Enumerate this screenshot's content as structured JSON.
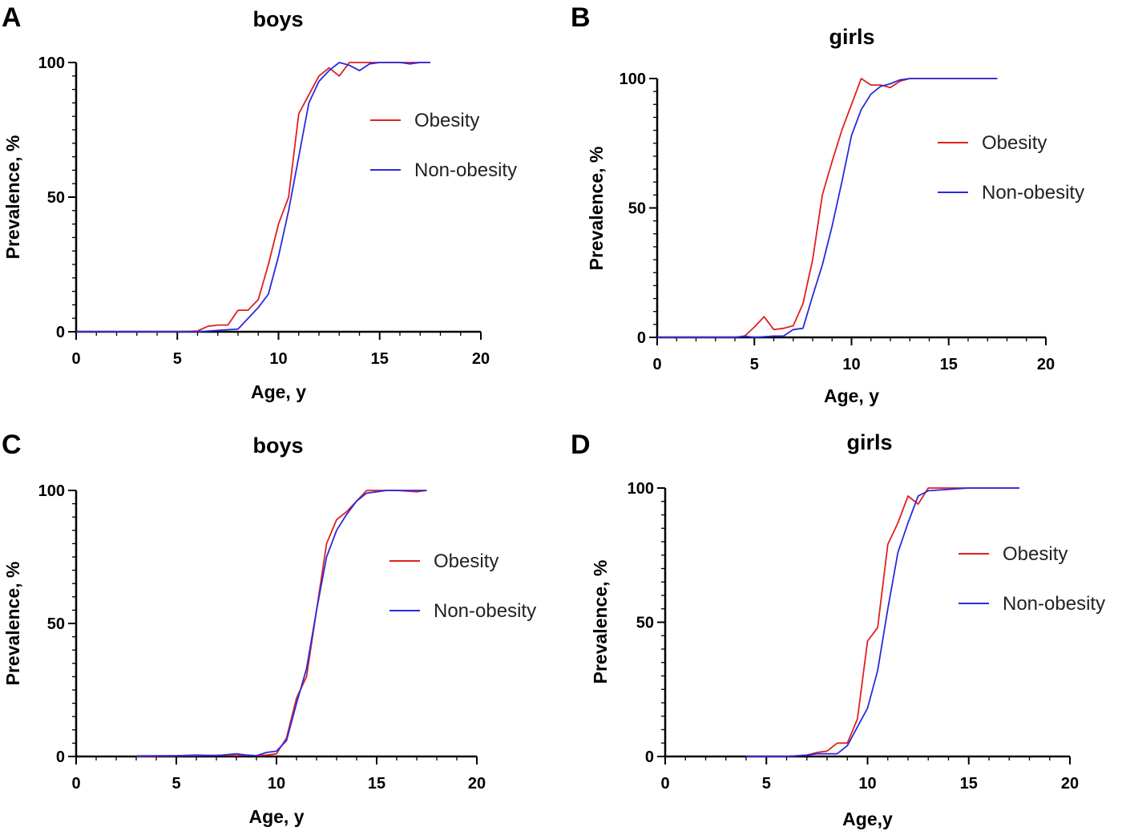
{
  "colors": {
    "obesity": "#e02020",
    "non_obesity": "#2a2ae0"
  },
  "chart_data": [
    {
      "type": "line",
      "panel": "A",
      "title": "boys",
      "xlabel": "Age, y",
      "ylabel": "Prevalence, %",
      "xlim": [
        0,
        20
      ],
      "ylim": [
        0,
        100
      ],
      "xticks": [
        "0",
        "5",
        "10",
        "15",
        "20"
      ],
      "yticks": [
        "0",
        "50",
        "100"
      ],
      "legend_position": "right",
      "series": [
        {
          "name": "Obesity",
          "color": "#e02020",
          "points": [
            [
              0,
              0
            ],
            [
              3,
              0
            ],
            [
              5,
              0
            ],
            [
              6,
              0.3
            ],
            [
              6.5,
              2
            ],
            [
              7,
              2.5
            ],
            [
              7.5,
              2.5
            ],
            [
              8,
              8
            ],
            [
              8.5,
              8
            ],
            [
              9,
              12
            ],
            [
              9.5,
              25
            ],
            [
              10,
              40
            ],
            [
              10.5,
              50
            ],
            [
              11,
              81
            ],
            [
              11.5,
              88
            ],
            [
              12,
              95
            ],
            [
              12.5,
              98
            ],
            [
              13,
              95
            ],
            [
              13.5,
              100
            ],
            [
              14,
              100
            ],
            [
              15,
              100
            ],
            [
              16,
              100
            ],
            [
              17,
              100
            ],
            [
              17.5,
              100
            ]
          ]
        },
        {
          "name": "Non-obesity",
          "color": "#2a2ae0",
          "points": [
            [
              0,
              0
            ],
            [
              3,
              0
            ],
            [
              6,
              0
            ],
            [
              7,
              0.5
            ],
            [
              8,
              1
            ],
            [
              8.5,
              5
            ],
            [
              9,
              9
            ],
            [
              9.5,
              14
            ],
            [
              10,
              28
            ],
            [
              10.5,
              45
            ],
            [
              11,
              65
            ],
            [
              11.5,
              85
            ],
            [
              12,
              93
            ],
            [
              12.5,
              97
            ],
            [
              13,
              100
            ],
            [
              13.5,
              99
            ],
            [
              14,
              97
            ],
            [
              14.5,
              99.5
            ],
            [
              15,
              100
            ],
            [
              16,
              100
            ],
            [
              16.5,
              99.5
            ],
            [
              17,
              100
            ],
            [
              17.5,
              100
            ]
          ]
        }
      ]
    },
    {
      "type": "line",
      "panel": "B",
      "title": "girls",
      "xlabel": "Age, y",
      "ylabel": "Prevalence, %",
      "xlim": [
        0,
        20
      ],
      "ylim": [
        0,
        100
      ],
      "xticks": [
        "0",
        "5",
        "10",
        "15",
        "20"
      ],
      "yticks": [
        "0",
        "50",
        "100"
      ],
      "legend_position": "right",
      "series": [
        {
          "name": "Obesity",
          "color": "#e02020",
          "points": [
            [
              0,
              0
            ],
            [
              4,
              0
            ],
            [
              4.5,
              0.5
            ],
            [
              5,
              4
            ],
            [
              5.5,
              8
            ],
            [
              6,
              3
            ],
            [
              6.5,
              3.5
            ],
            [
              7,
              4.5
            ],
            [
              7.5,
              13
            ],
            [
              8,
              30
            ],
            [
              8.5,
              55
            ],
            [
              9,
              68
            ],
            [
              9.5,
              80
            ],
            [
              10,
              90
            ],
            [
              10.5,
              100
            ],
            [
              11,
              97.5
            ],
            [
              11.5,
              97.5
            ],
            [
              12,
              96.5
            ],
            [
              12.5,
              99
            ],
            [
              13,
              100
            ],
            [
              14,
              100
            ],
            [
              15,
              100
            ],
            [
              16,
              100
            ],
            [
              17,
              100
            ],
            [
              17.5,
              100
            ]
          ]
        },
        {
          "name": "Non-obesity",
          "color": "#2a2ae0",
          "points": [
            [
              0,
              0
            ],
            [
              4,
              0
            ],
            [
              4.5,
              0.5
            ],
            [
              5,
              0
            ],
            [
              6,
              0.5
            ],
            [
              6.5,
              0.5
            ],
            [
              7,
              3
            ],
            [
              7.5,
              3.5
            ],
            [
              8,
              16
            ],
            [
              8.5,
              28
            ],
            [
              9,
              43
            ],
            [
              9.5,
              60
            ],
            [
              10,
              78
            ],
            [
              10.5,
              88
            ],
            [
              11,
              94
            ],
            [
              11.5,
              97
            ],
            [
              12,
              98
            ],
            [
              12.5,
              99.5
            ],
            [
              13,
              100
            ],
            [
              14,
              100
            ],
            [
              15,
              100
            ],
            [
              16,
              100
            ],
            [
              17,
              100
            ],
            [
              17.5,
              100
            ]
          ]
        }
      ]
    },
    {
      "type": "line",
      "panel": "C",
      "title": "boys",
      "xlabel": "Age, y",
      "ylabel": "Prevalence, %",
      "xlim": [
        0,
        20
      ],
      "ylim": [
        0,
        100
      ],
      "xticks": [
        "0",
        "5",
        "10",
        "15",
        "20"
      ],
      "yticks": [
        "0",
        "50",
        "100"
      ],
      "legend_position": "right",
      "series": [
        {
          "name": "Obesity",
          "color": "#e02020",
          "points": [
            [
              3,
              0
            ],
            [
              6,
              0.3
            ],
            [
              7.5,
              0.5
            ],
            [
              8,
              0.3
            ],
            [
              8.5,
              0.5
            ],
            [
              9,
              0.3
            ],
            [
              9.5,
              0.5
            ],
            [
              10,
              1
            ],
            [
              10.5,
              7
            ],
            [
              11,
              22
            ],
            [
              11.5,
              30
            ],
            [
              12,
              55
            ],
            [
              12.5,
              80
            ],
            [
              13,
              89
            ],
            [
              13.5,
              92
            ],
            [
              14,
              96
            ],
            [
              14.5,
              100
            ],
            [
              15,
              100
            ],
            [
              16,
              100
            ],
            [
              17,
              99.5
            ],
            [
              17.5,
              100
            ]
          ]
        },
        {
          "name": "Non-obesity",
          "color": "#2a2ae0",
          "points": [
            [
              3,
              0.2
            ],
            [
              5,
              0.3
            ],
            [
              6,
              0.5
            ],
            [
              7,
              0.3
            ],
            [
              8,
              1
            ],
            [
              8.5,
              0.5
            ],
            [
              9,
              0.3
            ],
            [
              9.5,
              1.5
            ],
            [
              10,
              2
            ],
            [
              10.5,
              6
            ],
            [
              11,
              20
            ],
            [
              11.5,
              33
            ],
            [
              12,
              55
            ],
            [
              12.5,
              75
            ],
            [
              13,
              85
            ],
            [
              13.5,
              91
            ],
            [
              14,
              96
            ],
            [
              14.5,
              99
            ],
            [
              15,
              99.5
            ],
            [
              15.5,
              100
            ],
            [
              16,
              100
            ],
            [
              17,
              100
            ],
            [
              17.5,
              100
            ]
          ]
        }
      ]
    },
    {
      "type": "line",
      "panel": "D",
      "title": "girls",
      "xlabel": "Age,y",
      "ylabel": "Prevalence, %",
      "xlim": [
        0,
        20
      ],
      "ylim": [
        0,
        100
      ],
      "xticks": [
        "0",
        "5",
        "10",
        "15",
        "20"
      ],
      "yticks": [
        "0",
        "50",
        "100"
      ],
      "legend_position": "right",
      "series": [
        {
          "name": "Obesity",
          "color": "#e02020",
          "points": [
            [
              4,
              0
            ],
            [
              6,
              0
            ],
            [
              7,
              0.5
            ],
            [
              7.5,
              1.5
            ],
            [
              8,
              2
            ],
            [
              8.5,
              5
            ],
            [
              9,
              5
            ],
            [
              9.5,
              14
            ],
            [
              10,
              43
            ],
            [
              10.5,
              48
            ],
            [
              11,
              79
            ],
            [
              11.5,
              87
            ],
            [
              12,
              97
            ],
            [
              12.5,
              94
            ],
            [
              13,
              100
            ],
            [
              14,
              100
            ],
            [
              15,
              100
            ],
            [
              16,
              100
            ],
            [
              17,
              100
            ],
            [
              17.5,
              100
            ]
          ]
        },
        {
          "name": "Non-obesity",
          "color": "#2a2ae0",
          "points": [
            [
              4,
              0
            ],
            [
              6,
              0
            ],
            [
              7,
              0.5
            ],
            [
              7.5,
              1
            ],
            [
              8,
              1
            ],
            [
              8.5,
              1
            ],
            [
              9,
              4
            ],
            [
              9.5,
              11
            ],
            [
              10,
              18
            ],
            [
              10.5,
              32
            ],
            [
              11,
              55
            ],
            [
              11.5,
              76
            ],
            [
              12,
              87
            ],
            [
              12.5,
              97
            ],
            [
              13,
              99
            ],
            [
              14,
              99.5
            ],
            [
              15,
              100
            ],
            [
              16,
              100
            ],
            [
              17,
              100
            ],
            [
              17.5,
              100
            ]
          ]
        }
      ]
    }
  ]
}
